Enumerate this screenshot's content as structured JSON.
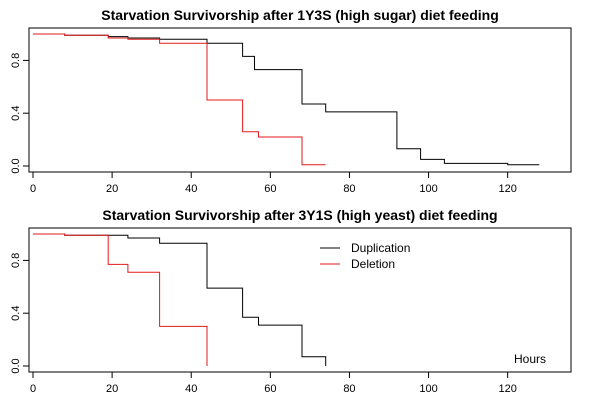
{
  "chart_data": [
    {
      "type": "line",
      "step": true,
      "title": "Starvation Survivorship after 1Y3S (high sugar) diet feeding",
      "xlim": [
        0,
        135
      ],
      "ylim": [
        0,
        1
      ],
      "x_ticks": [
        0,
        20,
        40,
        60,
        80,
        100,
        120
      ],
      "y_ticks": [
        0.0,
        0.4,
        0.8
      ],
      "series": [
        {
          "color": "#000000",
          "x": [
            0,
            8,
            19,
            24,
            32,
            44,
            53,
            56,
            68,
            74,
            92,
            98,
            104,
            120,
            128
          ],
          "y": [
            1.0,
            0.99,
            0.98,
            0.97,
            0.96,
            0.93,
            0.83,
            0.73,
            0.47,
            0.41,
            0.13,
            0.05,
            0.02,
            0.01,
            0.01
          ]
        },
        {
          "color": "#e31a1c",
          "x": [
            0,
            8,
            19,
            24,
            32,
            44,
            53,
            57,
            68,
            74
          ],
          "y": [
            1.0,
            0.99,
            0.97,
            0.96,
            0.93,
            0.5,
            0.26,
            0.22,
            0.01,
            0.01
          ]
        }
      ]
    },
    {
      "type": "line",
      "step": true,
      "title": "Starvation Survivorship after 3Y1S (high yeast) diet feeding",
      "xlim": [
        0,
        135
      ],
      "ylim": [
        0,
        1
      ],
      "x_ticks": [
        0,
        20,
        40,
        60,
        80,
        100,
        120
      ],
      "y_ticks": [
        0.0,
        0.4,
        0.8
      ],
      "legend": {
        "position": "top-center",
        "entries": [
          {
            "label": "Duplication",
            "color": "#000000"
          },
          {
            "label": "Deletion",
            "color": "#e31a1c"
          }
        ]
      },
      "annotation": "Hours",
      "series": [
        {
          "name": "Duplication",
          "color": "#000000",
          "x": [
            0,
            8,
            19,
            24,
            32,
            44,
            53,
            57,
            68,
            74
          ],
          "y": [
            1.0,
            0.99,
            0.99,
            0.97,
            0.93,
            0.59,
            0.37,
            0.31,
            0.07,
            0.0
          ]
        },
        {
          "name": "Deletion",
          "color": "#e31a1c",
          "x": [
            0,
            8,
            19,
            24,
            32,
            44
          ],
          "y": [
            1.0,
            0.99,
            0.77,
            0.71,
            0.3,
            0.0
          ]
        }
      ]
    }
  ]
}
